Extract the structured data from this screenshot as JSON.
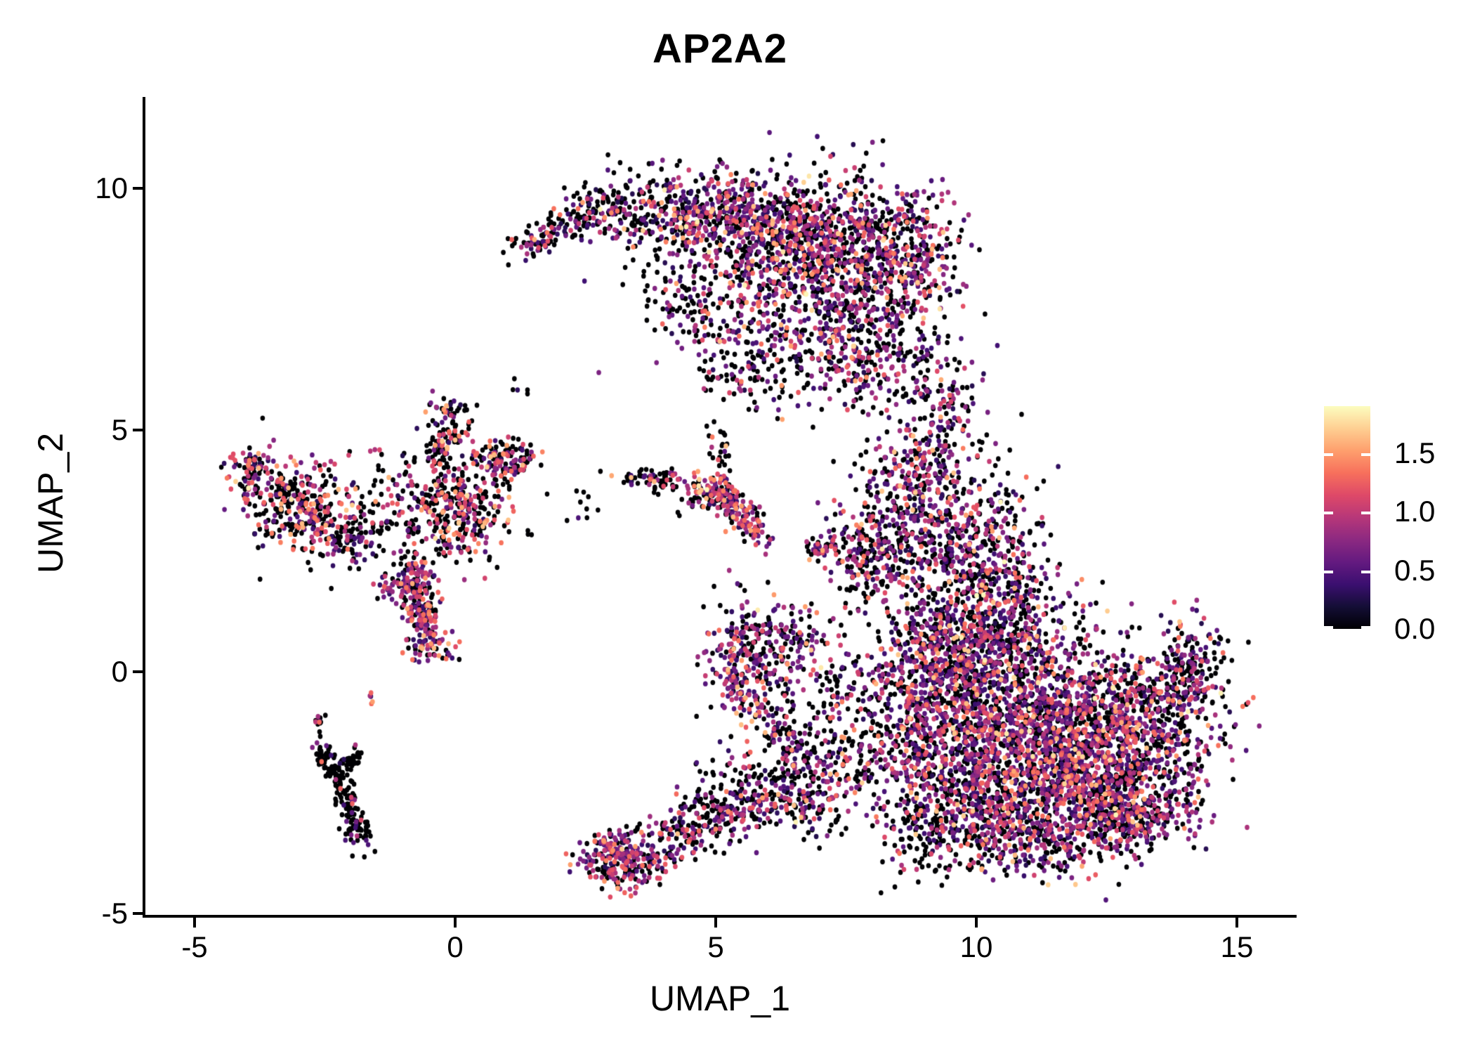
{
  "chart_data": {
    "type": "scatter",
    "title": "AP2A2",
    "xlabel": "UMAP_1",
    "ylabel": "UMAP_2",
    "x_ticks": [
      -5,
      0,
      5,
      10,
      15
    ],
    "x_tick_labels": [
      "-5",
      "0",
      "5",
      "10",
      "15"
    ],
    "y_ticks": [
      10,
      5,
      0,
      -5
    ],
    "y_tick_labels": [
      "10",
      "5",
      "0",
      "-5"
    ],
    "xlim": [
      -5.97,
      16.1
    ],
    "ylim": [
      -5.05,
      11.9
    ],
    "grid": false,
    "legend_position": "right",
    "background_color": "#ffffff",
    "axis_color": "#000000",
    "point_radius_px": 3.3,
    "seed": 1337,
    "density": 0.9,
    "colorbar": {
      "vmin": 0.0,
      "vmax": 1.9,
      "ticks": [
        0.0,
        0.5,
        1.0,
        1.5
      ],
      "tick_labels": [
        "0.0",
        "0.5",
        "1.0",
        "1.5"
      ]
    },
    "colormap": {
      "name": "magma",
      "stops": [
        {
          "t": 0.0,
          "hex": "#000004"
        },
        {
          "t": 0.1,
          "hex": "#140e36"
        },
        {
          "t": 0.2,
          "hex": "#3b0f70"
        },
        {
          "t": 0.3,
          "hex": "#641a80"
        },
        {
          "t": 0.4,
          "hex": "#8c2981"
        },
        {
          "t": 0.5,
          "hex": "#b73779"
        },
        {
          "t": 0.6,
          "hex": "#de4968"
        },
        {
          "t": 0.7,
          "hex": "#f7705c"
        },
        {
          "t": 0.8,
          "hex": "#fe9f6d"
        },
        {
          "t": 0.9,
          "hex": "#fecf92"
        },
        {
          "t": 1.0,
          "hex": "#fcfdbf"
        }
      ]
    },
    "value_bins": [
      [
        0.0,
        0.0
      ],
      [
        0.25,
        0.55
      ],
      [
        0.55,
        0.95
      ],
      [
        0.95,
        1.35
      ],
      [
        1.35,
        1.7
      ],
      [
        1.7,
        1.9
      ]
    ],
    "mixes": {
      "topdark": [
        0.55,
        0.18,
        0.13,
        0.1,
        0.035,
        0.005
      ],
      "std": [
        0.42,
        0.19,
        0.21,
        0.13,
        0.045,
        0.005
      ],
      "right": [
        0.4,
        0.2,
        0.23,
        0.125,
        0.045,
        0.005
      ],
      "left": [
        0.45,
        0.1,
        0.14,
        0.22,
        0.08,
        0.01
      ],
      "leftarm": [
        0.55,
        0.13,
        0.11,
        0.16,
        0.05,
        0
      ],
      "purple": [
        0.3,
        0.22,
        0.28,
        0.16,
        0.04,
        0
      ],
      "purplepink": [
        0.3,
        0.18,
        0.24,
        0.22,
        0.06,
        0
      ],
      "gtail": [
        0.42,
        0.2,
        0.2,
        0.14,
        0.04,
        0
      ],
      "blackish": [
        0.7,
        0.12,
        0.08,
        0.07,
        0.03,
        0
      ],
      "black": [
        0.84,
        0.08,
        0.05,
        0.03,
        0,
        0
      ],
      "sparseblack": [
        0.62,
        0.14,
        0.11,
        0.09,
        0.04,
        0
      ]
    },
    "clusters": [
      {
        "shape": "line",
        "x1": 1.25,
        "y1": 8.75,
        "x2": 2.6,
        "y2": 9.55,
        "spread": 0.18,
        "n": 140,
        "mix": "topdark"
      },
      {
        "shape": "blob",
        "cx": 3.3,
        "cy": 9.55,
        "sx": 0.55,
        "sy": 0.35,
        "n": 220,
        "mix": "topdark"
      },
      {
        "shape": "blob",
        "cx": 4.7,
        "cy": 9.4,
        "sx": 0.6,
        "sy": 0.5,
        "n": 320,
        "mix": "std"
      },
      {
        "shape": "blob",
        "cx": 6.1,
        "cy": 9.1,
        "sx": 0.7,
        "sy": 0.65,
        "n": 550,
        "mix": "std"
      },
      {
        "shape": "blob",
        "cx": 7.5,
        "cy": 8.8,
        "sx": 0.8,
        "sy": 0.75,
        "n": 650,
        "mix": "std"
      },
      {
        "shape": "blob",
        "cx": 8.8,
        "cy": 8.4,
        "sx": 0.45,
        "sy": 0.8,
        "n": 300,
        "mix": "std"
      },
      {
        "shape": "blob",
        "cx": 6.7,
        "cy": 7.4,
        "sx": 1.1,
        "sy": 0.7,
        "n": 430,
        "mix": "std"
      },
      {
        "shape": "blob",
        "cx": 7.8,
        "cy": 6.4,
        "sx": 0.7,
        "sy": 0.5,
        "n": 220,
        "mix": "std"
      },
      {
        "shape": "line",
        "x1": 4.0,
        "y1": 8.0,
        "x2": 5.3,
        "y2": 7.0,
        "spread": 0.45,
        "n": 130,
        "mix": "sparseblack"
      },
      {
        "shape": "line",
        "x1": 5.0,
        "y1": 6.2,
        "x2": 6.2,
        "y2": 5.9,
        "spread": 0.3,
        "n": 80,
        "mix": "sparseblack"
      },
      {
        "shape": "blob",
        "cx": 9.25,
        "cy": 5.3,
        "sx": 0.4,
        "sy": 0.7,
        "n": 160,
        "mix": "std"
      },
      {
        "shape": "blob",
        "cx": 8.8,
        "cy": 4.0,
        "sx": 0.6,
        "sy": 0.6,
        "n": 200,
        "mix": "std"
      },
      {
        "shape": "blob",
        "cx": 9.6,
        "cy": 3.1,
        "sx": 0.75,
        "sy": 0.75,
        "n": 340,
        "mix": "std"
      },
      {
        "shape": "blob",
        "cx": 8.3,
        "cy": 2.6,
        "sx": 0.55,
        "sy": 0.6,
        "n": 240,
        "mix": "std"
      },
      {
        "shape": "line",
        "x1": 7.4,
        "y1": 2.9,
        "x2": 7.9,
        "y2": 1.6,
        "spread": 0.3,
        "n": 90,
        "mix": "sparseblack"
      },
      {
        "shape": "blob",
        "cx": 7.0,
        "cy": 2.55,
        "sx": 0.16,
        "sy": 0.13,
        "n": 40,
        "mix": "purplepink"
      },
      {
        "shape": "blob",
        "cx": 10.4,
        "cy": 1.9,
        "sx": 0.55,
        "sy": 0.6,
        "n": 220,
        "mix": "right"
      },
      {
        "shape": "blob",
        "cx": 9.6,
        "cy": 1.0,
        "sx": 0.6,
        "sy": 0.7,
        "n": 280,
        "mix": "right"
      },
      {
        "shape": "blob",
        "cx": 10.6,
        "cy": 0.6,
        "sx": 0.8,
        "sy": 0.6,
        "n": 350,
        "mix": "right"
      },
      {
        "shape": "blob",
        "cx": 9.5,
        "cy": -0.5,
        "sx": 0.8,
        "sy": 0.8,
        "n": 420,
        "mix": "right"
      },
      {
        "shape": "blob",
        "cx": 10.8,
        "cy": -1.0,
        "sx": 1.0,
        "sy": 0.85,
        "n": 780,
        "mix": "right"
      },
      {
        "shape": "blob",
        "cx": 12.2,
        "cy": -1.3,
        "sx": 1.0,
        "sy": 0.85,
        "n": 780,
        "mix": "right"
      },
      {
        "shape": "blob",
        "cx": 13.4,
        "cy": -0.8,
        "sx": 0.7,
        "sy": 0.7,
        "n": 400,
        "mix": "right"
      },
      {
        "shape": "blob",
        "cx": 14.15,
        "cy": 0.2,
        "sx": 0.3,
        "sy": 0.5,
        "n": 150,
        "mix": "right"
      },
      {
        "shape": "blob",
        "cx": 11.5,
        "cy": -2.4,
        "sx": 1.1,
        "sy": 0.7,
        "n": 620,
        "mix": "right"
      },
      {
        "shape": "blob",
        "cx": 12.8,
        "cy": -2.6,
        "sx": 0.8,
        "sy": 0.55,
        "n": 380,
        "mix": "right"
      },
      {
        "shape": "blob",
        "cx": 10.0,
        "cy": -2.6,
        "sx": 0.7,
        "sy": 0.6,
        "n": 340,
        "mix": "right"
      },
      {
        "shape": "blob",
        "cx": 11.2,
        "cy": -3.5,
        "sx": 0.9,
        "sy": 0.4,
        "n": 300,
        "mix": "right"
      },
      {
        "shape": "blob",
        "cx": 8.8,
        "cy": -1.6,
        "sx": 0.6,
        "sy": 0.8,
        "n": 300,
        "mix": "right"
      },
      {
        "shape": "blob",
        "cx": 8.9,
        "cy": 0.3,
        "sx": 0.5,
        "sy": 0.6,
        "n": 200,
        "mix": "right"
      },
      {
        "shape": "blob",
        "cx": 9.3,
        "cy": -3.3,
        "sx": 0.5,
        "sy": 0.45,
        "n": 150,
        "mix": "sparseblack"
      },
      {
        "shape": "line",
        "x1": 12.8,
        "y1": -3.3,
        "x2": 13.6,
        "y2": -2.6,
        "spread": 0.3,
        "n": 120,
        "mix": "right"
      },
      {
        "shape": "blob",
        "cx": -3.85,
        "cy": 4.15,
        "sx": 0.3,
        "sy": 0.3,
        "n": 110,
        "mix": "left"
      },
      {
        "shape": "line",
        "x1": -3.5,
        "y1": 3.9,
        "x2": -3.05,
        "y2": 3.5,
        "spread": 0.12,
        "n": 50,
        "mix": "black"
      },
      {
        "shape": "blob",
        "cx": -2.85,
        "cy": 3.35,
        "sx": 0.5,
        "sy": 0.5,
        "n": 300,
        "mix": "left"
      },
      {
        "shape": "blob",
        "cx": -1.95,
        "cy": 2.7,
        "sx": 0.35,
        "sy": 0.3,
        "n": 90,
        "mix": "blackish"
      },
      {
        "shape": "blob",
        "cx": 0.0,
        "cy": 3.3,
        "sx": 0.55,
        "sy": 0.5,
        "n": 380,
        "mix": "left"
      },
      {
        "shape": "line",
        "x1": -0.25,
        "y1": 4.3,
        "x2": -0.05,
        "y2": 5.7,
        "spread": 0.22,
        "n": 130,
        "mix": "leftarm"
      },
      {
        "shape": "line",
        "x1": 0.35,
        "y1": 4.3,
        "x2": 1.2,
        "y2": 4.55,
        "spread": 0.18,
        "n": 90,
        "mix": "left"
      },
      {
        "shape": "line",
        "x1": 0.8,
        "y1": 3.9,
        "x2": 1.5,
        "y2": 4.5,
        "spread": 0.15,
        "n": 60,
        "mix": "leftarm"
      },
      {
        "shape": "line",
        "x1": -0.7,
        "y1": 2.3,
        "x2": -1.2,
        "y2": 1.6,
        "spread": 0.2,
        "n": 90,
        "mix": "purple"
      },
      {
        "shape": "line",
        "x1": -0.75,
        "y1": 1.9,
        "x2": -0.55,
        "y2": 0.7,
        "spread": 0.18,
        "n": 170,
        "mix": "purplepink"
      },
      {
        "shape": "blob",
        "cx": -0.5,
        "cy": 0.55,
        "sx": 0.25,
        "sy": 0.2,
        "n": 60,
        "mix": "purplepink"
      },
      {
        "shape": "blob",
        "cx": -1.2,
        "cy": 3.6,
        "sx": 0.7,
        "sy": 0.6,
        "n": 80,
        "mix": "blackish"
      },
      {
        "shape": "line",
        "x1": 3.3,
        "y1": 4.05,
        "x2": 4.35,
        "y2": 3.95,
        "spread": 0.12,
        "n": 80,
        "mix": "blackish"
      },
      {
        "shape": "blob",
        "cx": 4.75,
        "cy": 3.7,
        "sx": 0.25,
        "sy": 0.25,
        "n": 70,
        "mix": "left"
      },
      {
        "shape": "line",
        "x1": 5.0,
        "y1": 3.85,
        "x2": 5.85,
        "y2": 2.75,
        "spread": 0.16,
        "n": 190,
        "mix": "purplepink"
      },
      {
        "shape": "line",
        "x1": 5.05,
        "y1": 5.1,
        "x2": 5.15,
        "y2": 4.2,
        "spread": 0.1,
        "n": 25,
        "mix": "blackish"
      },
      {
        "shape": "blob",
        "cx": 5.6,
        "cy": 0.1,
        "sx": 0.4,
        "sy": 0.65,
        "n": 300,
        "mix": "purple"
      },
      {
        "shape": "blob",
        "cx": 6.4,
        "cy": 0.6,
        "sx": 0.45,
        "sy": 0.45,
        "n": 130,
        "mix": "std"
      },
      {
        "shape": "line",
        "x1": 6.0,
        "y1": -0.7,
        "x2": 6.7,
        "y2": -1.8,
        "spread": 0.25,
        "n": 110,
        "mix": "sparseblack"
      },
      {
        "shape": "line",
        "x1": 6.2,
        "y1": -2.2,
        "x2": 6.9,
        "y2": -3.1,
        "spread": 0.3,
        "n": 90,
        "mix": "blackish"
      },
      {
        "shape": "blob",
        "cx": 7.5,
        "cy": -0.6,
        "sx": 0.5,
        "sy": 0.8,
        "n": 120,
        "mix": "sparseblack"
      },
      {
        "shape": "blob",
        "cx": 3.15,
        "cy": -3.9,
        "sx": 0.4,
        "sy": 0.3,
        "n": 280,
        "mix": "purple"
      },
      {
        "shape": "line",
        "x1": 3.7,
        "y1": -3.7,
        "x2": 6.2,
        "y2": -2.55,
        "spread": 0.28,
        "n": 260,
        "mix": "gtail"
      },
      {
        "shape": "blob",
        "cx": 6.9,
        "cy": -2.2,
        "sx": 0.6,
        "sy": 0.5,
        "n": 180,
        "mix": "right"
      },
      {
        "shape": "line",
        "x1": 4.6,
        "y1": -3.0,
        "x2": 5.6,
        "y2": -2.2,
        "spread": 0.35,
        "n": 110,
        "mix": "sparseblack"
      },
      {
        "shape": "line",
        "x1": -2.6,
        "y1": -1.55,
        "x2": -1.9,
        "y2": -3.0,
        "spread": 0.1,
        "n": 130,
        "mix": "black"
      },
      {
        "shape": "line",
        "x1": -2.3,
        "y1": -2.1,
        "x2": -1.8,
        "y2": -1.65,
        "spread": 0.08,
        "n": 45,
        "mix": "black"
      },
      {
        "shape": "blob",
        "cx": -1.85,
        "cy": -3.3,
        "sx": 0.15,
        "sy": 0.2,
        "n": 55,
        "mix": "black"
      },
      {
        "shape": "line",
        "x1": -2.62,
        "y1": -1.3,
        "x2": -2.58,
        "y2": -0.9,
        "spread": 0.05,
        "n": 15,
        "mix": "black"
      },
      {
        "shape": "blob",
        "cx": -1.6,
        "cy": -0.55,
        "sx": 0.06,
        "sy": 0.09,
        "n": 6,
        "mix": "purple"
      },
      {
        "shape": "blob",
        "cx": 1.3,
        "cy": 5.85,
        "sx": 0.15,
        "sy": 0.1,
        "n": 6,
        "mix": "black"
      },
      {
        "shape": "blob",
        "cx": 2.3,
        "cy": 3.4,
        "sx": 0.4,
        "sy": 0.4,
        "n": 12,
        "mix": "black"
      }
    ]
  }
}
